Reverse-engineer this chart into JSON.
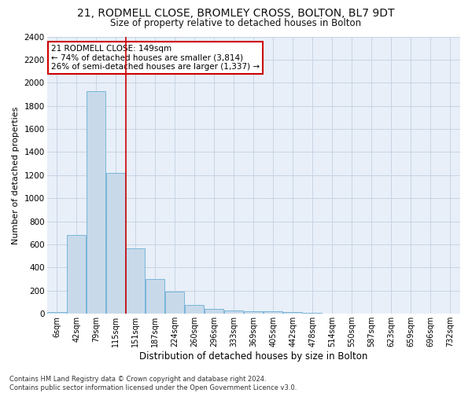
{
  "title_line1": "21, RODMELL CLOSE, BROMLEY CROSS, BOLTON, BL7 9DT",
  "title_line2": "Size of property relative to detached houses in Bolton",
  "xlabel": "Distribution of detached houses by size in Bolton",
  "ylabel": "Number of detached properties",
  "categories": [
    "6sqm",
    "42sqm",
    "79sqm",
    "115sqm",
    "151sqm",
    "187sqm",
    "224sqm",
    "260sqm",
    "296sqm",
    "333sqm",
    "369sqm",
    "405sqm",
    "442sqm",
    "478sqm",
    "514sqm",
    "550sqm",
    "587sqm",
    "623sqm",
    "659sqm",
    "696sqm",
    "732sqm"
  ],
  "values": [
    15,
    680,
    1930,
    1220,
    570,
    300,
    195,
    75,
    40,
    30,
    25,
    20,
    15,
    10,
    5,
    3,
    2,
    1,
    1,
    0,
    0
  ],
  "bar_color": "#c8daea",
  "bar_edge_color": "#6aaed6",
  "vline_color": "#cc0000",
  "annotation_text": "21 RODMELL CLOSE: 149sqm\n← 74% of detached houses are smaller (3,814)\n26% of semi-detached houses are larger (1,337) →",
  "annotation_box_color": "#ffffff",
  "annotation_box_edge": "#cc0000",
  "ylim": [
    0,
    2400
  ],
  "yticks": [
    0,
    200,
    400,
    600,
    800,
    1000,
    1200,
    1400,
    1600,
    1800,
    2000,
    2200,
    2400
  ],
  "grid_color": "#c8d4e4",
  "plot_bg_color": "#e8eff8",
  "fig_bg_color": "#ffffff",
  "footer_line1": "Contains HM Land Registry data © Crown copyright and database right 2024.",
  "footer_line2": "Contains public sector information licensed under the Open Government Licence v3.0."
}
